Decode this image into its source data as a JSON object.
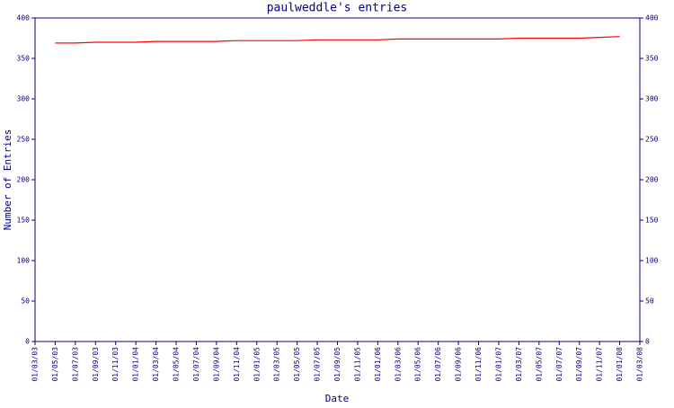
{
  "chart_data": {
    "type": "line",
    "title": "paulweddle's entries",
    "x_label": "Date",
    "y_label": "Number of Entries",
    "categories": [
      "01/03/03",
      "01/05/03",
      "01/07/03",
      "01/09/03",
      "01/11/03",
      "01/01/04",
      "01/03/04",
      "01/05/04",
      "01/07/04",
      "01/09/04",
      "01/11/04",
      "01/01/05",
      "01/03/05",
      "01/05/05",
      "01/07/05",
      "01/09/05",
      "01/11/05",
      "01/01/06",
      "01/03/06",
      "01/05/06",
      "01/07/06",
      "01/09/06",
      "01/11/06",
      "01/01/07",
      "01/03/07",
      "01/05/07",
      "01/07/07",
      "01/09/07",
      "01/11/07",
      "01/01/08",
      "01/03/08"
    ],
    "series": [
      {
        "color": "#ff0000",
        "values": [
          null,
          369,
          369,
          370,
          370,
          370,
          371,
          371,
          371,
          371,
          372,
          372,
          372,
          372,
          373,
          373,
          373,
          373,
          374,
          374,
          374,
          374,
          374,
          374,
          375,
          375,
          375,
          375,
          376,
          377,
          null
        ]
      }
    ],
    "ylim": [
      0,
      400
    ],
    "yticks": [
      0,
      50,
      100,
      150,
      200,
      250,
      300,
      350,
      400
    ],
    "y2lim": [
      0,
      400
    ],
    "y2ticks": [
      0,
      50,
      100,
      150,
      200,
      250,
      300,
      350,
      400
    ]
  }
}
